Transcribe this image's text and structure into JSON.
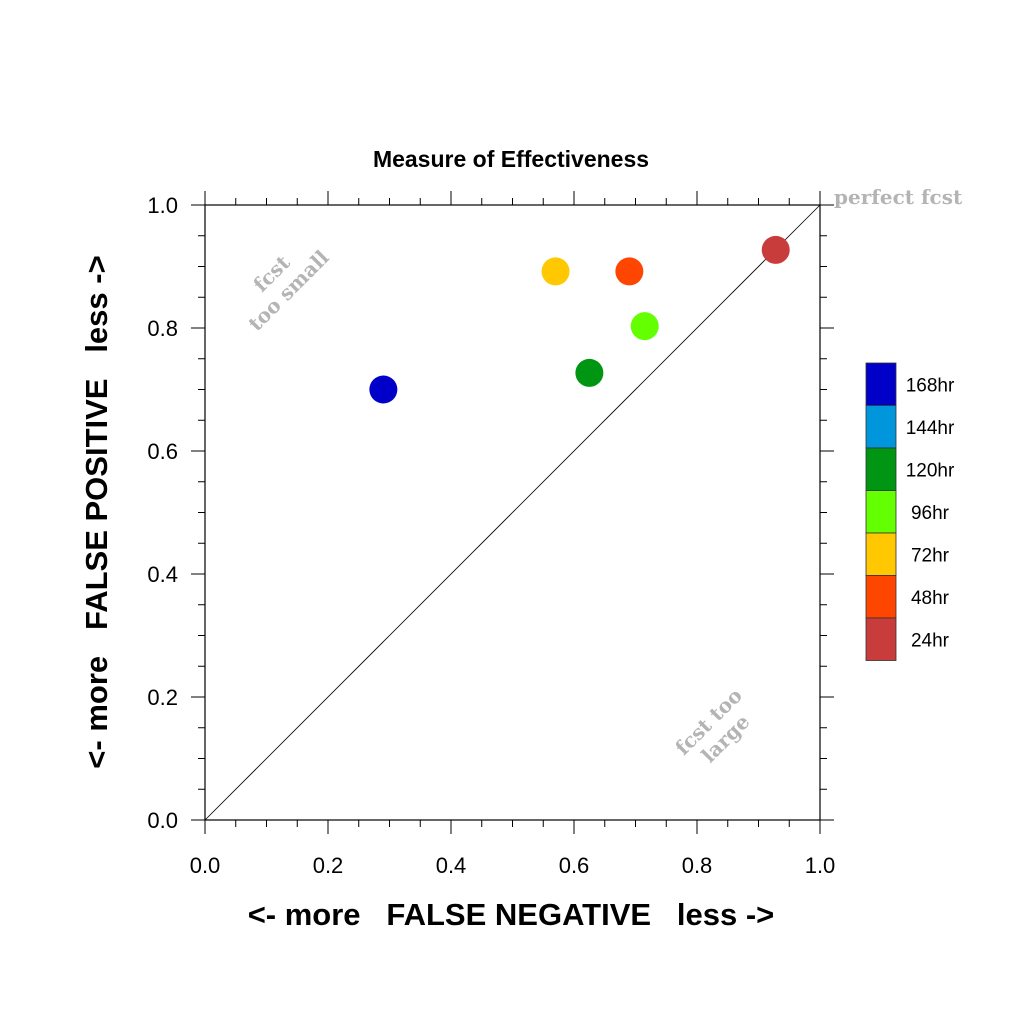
{
  "chart_data": {
    "type": "scatter",
    "title": "Measure of Effectiveness",
    "xlabel": "<- more   FALSE NEGATIVE   less ->",
    "ylabel": "<- more   FALSE POSITIVE   less ->",
    "xlim": [
      0.0,
      1.0
    ],
    "ylim": [
      0.0,
      1.0
    ],
    "x_ticks": [
      "0.0",
      "0.2",
      "0.4",
      "0.6",
      "0.8",
      "1.0"
    ],
    "y_ticks": [
      "0.0",
      "0.2",
      "0.4",
      "0.6",
      "0.8",
      "1.0"
    ],
    "grid": false,
    "reference_line": "diagonal",
    "annotations": {
      "perfect": "perfect fcst",
      "small_line1": "fcst",
      "small_line2": "too small",
      "large_line1": "fcst too",
      "large_line2": "large"
    },
    "legend_position": "right",
    "legend": [
      {
        "label": "168hr",
        "color": "#0000c8"
      },
      {
        "label": "144hr",
        "color": "#0096dc"
      },
      {
        "label": "120hr",
        "color": "#009614"
      },
      {
        "label": "96hr",
        "color": "#64ff00"
      },
      {
        "label": "72hr",
        "color": "#ffc800"
      },
      {
        "label": "48hr",
        "color": "#ff4600"
      },
      {
        "label": "24hr",
        "color": "#c83c3c"
      }
    ],
    "points": [
      {
        "lead": "168hr",
        "x": 0.29,
        "y": 0.7,
        "color": "#0000c8"
      },
      {
        "lead": "120hr",
        "x": 0.625,
        "y": 0.727,
        "color": "#009614"
      },
      {
        "lead": "96hr",
        "x": 0.715,
        "y": 0.803,
        "color": "#64ff00"
      },
      {
        "lead": "72hr",
        "x": 0.57,
        "y": 0.892,
        "color": "#ffc800"
      },
      {
        "lead": "48hr",
        "x": 0.69,
        "y": 0.892,
        "color": "#ff4600"
      },
      {
        "lead": "24hr",
        "x": 0.928,
        "y": 0.927,
        "color": "#c83c3c"
      }
    ]
  }
}
